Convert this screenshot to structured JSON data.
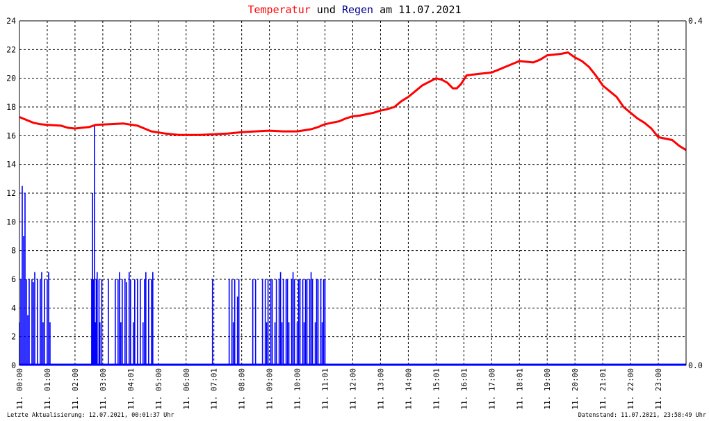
{
  "chart_data": {
    "type": "line",
    "title": {
      "part1": "Temperatur",
      "part2": " und ",
      "part3": "Regen",
      "part4": " am 11.07.2021"
    },
    "colors": {
      "temperature": "#ff0000",
      "rain": "#0000ff",
      "title_text": "#000000"
    },
    "y_left": {
      "min": 0,
      "max": 24,
      "ticks": [
        "0",
        "2",
        "4",
        "6",
        "8",
        "10",
        "12",
        "14",
        "16",
        "18",
        "20",
        "22",
        "24"
      ]
    },
    "y_right": {
      "min": 0.0,
      "max": 0.4,
      "ticks": [
        "0.0",
        "0.4"
      ]
    },
    "x_range_hours": [
      0,
      24
    ],
    "x_ticks": [
      {
        "h": 0,
        "label": "11. 00:00"
      },
      {
        "h": 1,
        "label": "11. 01:00"
      },
      {
        "h": 2,
        "label": "11. 02:00"
      },
      {
        "h": 3,
        "label": "11. 03:00"
      },
      {
        "h": 4,
        "label": "11. 04:01"
      },
      {
        "h": 5,
        "label": "11. 05:00"
      },
      {
        "h": 6,
        "label": "11. 06:00"
      },
      {
        "h": 7,
        "label": "11. 07:01"
      },
      {
        "h": 8,
        "label": "11. 08:00"
      },
      {
        "h": 9,
        "label": "11. 09:00"
      },
      {
        "h": 10,
        "label": "11. 10:00"
      },
      {
        "h": 11,
        "label": "11. 11:01"
      },
      {
        "h": 12,
        "label": "11. 12:00"
      },
      {
        "h": 13,
        "label": "11. 13:00"
      },
      {
        "h": 14,
        "label": "11. 14:00"
      },
      {
        "h": 15,
        "label": "11. 15:01"
      },
      {
        "h": 16,
        "label": "11. 16:01"
      },
      {
        "h": 17,
        "label": "11. 17:00"
      },
      {
        "h": 18,
        "label": "11. 18:01"
      },
      {
        "h": 19,
        "label": "11. 19:00"
      },
      {
        "h": 20,
        "label": "11. 20:00"
      },
      {
        "h": 21,
        "label": "11. 21:01"
      },
      {
        "h": 22,
        "label": "11. 22:00"
      },
      {
        "h": 23,
        "label": "11. 23:00"
      }
    ],
    "grid": true,
    "series": [
      {
        "name": "Temperatur",
        "axis": "left",
        "points": [
          [
            0.0,
            17.3
          ],
          [
            0.25,
            17.1
          ],
          [
            0.5,
            16.9
          ],
          [
            0.75,
            16.8
          ],
          [
            1.0,
            16.75
          ],
          [
            1.5,
            16.7
          ],
          [
            1.75,
            16.55
          ],
          [
            2.0,
            16.5
          ],
          [
            2.5,
            16.6
          ],
          [
            2.75,
            16.75
          ],
          [
            3.25,
            16.8
          ],
          [
            3.75,
            16.85
          ],
          [
            4.25,
            16.7
          ],
          [
            4.5,
            16.5
          ],
          [
            4.75,
            16.3
          ],
          [
            5.25,
            16.15
          ],
          [
            5.75,
            16.05
          ],
          [
            6.5,
            16.05
          ],
          [
            7.0,
            16.1
          ],
          [
            7.5,
            16.15
          ],
          [
            8.0,
            16.25
          ],
          [
            8.5,
            16.3
          ],
          [
            9.0,
            16.35
          ],
          [
            9.5,
            16.3
          ],
          [
            10.0,
            16.3
          ],
          [
            10.5,
            16.45
          ],
          [
            10.75,
            16.6
          ],
          [
            11.0,
            16.8
          ],
          [
            11.25,
            16.9
          ],
          [
            11.5,
            17.0
          ],
          [
            11.75,
            17.2
          ],
          [
            12.0,
            17.35
          ],
          [
            12.25,
            17.4
          ],
          [
            12.5,
            17.5
          ],
          [
            12.75,
            17.6
          ],
          [
            13.0,
            17.75
          ],
          [
            13.25,
            17.85
          ],
          [
            13.5,
            18.0
          ],
          [
            13.75,
            18.4
          ],
          [
            14.0,
            18.7
          ],
          [
            14.25,
            19.1
          ],
          [
            14.5,
            19.5
          ],
          [
            14.75,
            19.75
          ],
          [
            15.0,
            20.0
          ],
          [
            15.2,
            19.9
          ],
          [
            15.4,
            19.7
          ],
          [
            15.6,
            19.3
          ],
          [
            15.75,
            19.3
          ],
          [
            15.9,
            19.6
          ],
          [
            16.1,
            20.2
          ],
          [
            16.5,
            20.3
          ],
          [
            17.0,
            20.4
          ],
          [
            17.25,
            20.6
          ],
          [
            17.5,
            20.8
          ],
          [
            17.75,
            21.0
          ],
          [
            18.0,
            21.2
          ],
          [
            18.25,
            21.15
          ],
          [
            18.5,
            21.1
          ],
          [
            18.75,
            21.3
          ],
          [
            19.0,
            21.6
          ],
          [
            19.25,
            21.65
          ],
          [
            19.5,
            21.7
          ],
          [
            19.75,
            21.8
          ],
          [
            19.85,
            21.65
          ],
          [
            20.0,
            21.45
          ],
          [
            20.25,
            21.2
          ],
          [
            20.5,
            20.8
          ],
          [
            20.75,
            20.2
          ],
          [
            21.0,
            19.5
          ],
          [
            21.25,
            19.1
          ],
          [
            21.5,
            18.7
          ],
          [
            21.75,
            18.0
          ],
          [
            22.0,
            17.6
          ],
          [
            22.25,
            17.2
          ],
          [
            22.5,
            16.9
          ],
          [
            22.75,
            16.5
          ],
          [
            23.0,
            15.9
          ],
          [
            23.25,
            15.8
          ],
          [
            23.5,
            15.7
          ],
          [
            23.75,
            15.3
          ],
          [
            24.0,
            15.0
          ]
        ]
      },
      {
        "name": "Regen",
        "axis": "left",
        "bursts": [
          [
            0.0,
            1.1,
            0.05,
            [
              3,
              6,
              12.5,
              9,
              12,
              6,
              3.5,
              6,
              0,
              6,
              5.8,
              6.5,
              0,
              6,
              0,
              6,
              6.5,
              3,
              6,
              0,
              6,
              6.5,
              3
            ]
          ],
          [
            2.6,
            3.05,
            0.033,
            [
              6,
              12,
              6,
              16.8,
              3,
              6,
              6.5,
              0,
              6,
              3,
              0,
              6
            ]
          ],
          [
            3.15,
            3.3,
            0.05,
            [
              0,
              6,
              0
            ]
          ],
          [
            3.45,
            4.85,
            0.05,
            [
              6,
              0,
              6,
              6.5,
              3,
              6,
              0,
              6,
              5.8,
              0,
              6.5,
              6,
              0,
              3,
              6,
              0,
              6,
              0,
              6,
              0,
              3,
              6,
              6.5,
              0,
              6,
              0,
              6,
              6.5,
              0
            ]
          ],
          [
            6.95,
            7.0,
            0.05,
            [
              6
            ]
          ],
          [
            7.55,
            8.05,
            0.05,
            [
              6,
              0,
              6,
              3,
              6,
              0,
              4.8,
              6
            ]
          ],
          [
            8.35,
            8.55,
            0.05,
            [
              0,
              6,
              0,
              6
            ]
          ],
          [
            8.75,
            11.0,
            0.05,
            [
              6,
              0,
              6,
              3,
              6,
              0,
              6,
              6,
              0,
              3,
              6,
              0,
              6,
              6.5,
              3,
              6,
              0,
              6,
              6,
              3,
              0,
              6,
              6.5,
              6,
              0,
              3,
              6,
              6,
              0,
              6,
              3,
              6,
              6,
              0,
              6,
              6.5,
              6,
              0,
              3,
              6,
              6,
              0,
              6,
              3,
              6,
              6,
              0
            ]
          ]
        ]
      }
    ],
    "footer_left": "Letzte Aktualisierung: 12.07.2021, 00:01:37 Uhr",
    "footer_right": "Datenstand: 11.07.2021, 23:58:49 Uhr"
  }
}
